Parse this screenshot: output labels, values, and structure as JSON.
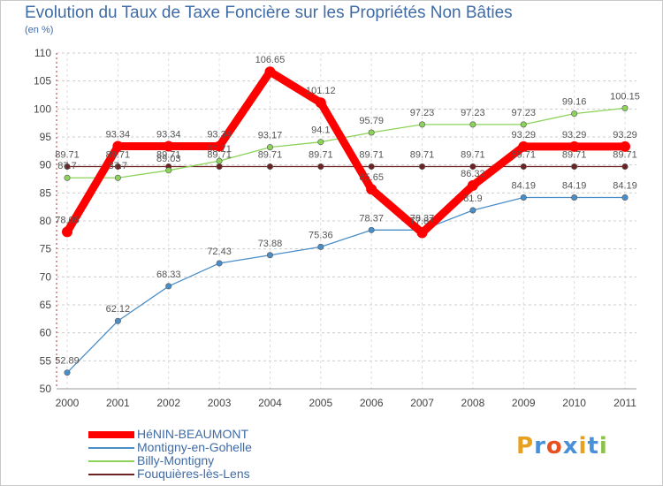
{
  "header": {
    "title": "Evolution du Taux de Taxe Foncière sur les Propriétés Non Bâties",
    "unit": "(en %)"
  },
  "brand": {
    "text": "Proxiti",
    "colors": [
      "#e8a020",
      "#4a90d9",
      "#e85020",
      "#4a90d9",
      "#e8a020",
      "#4a90d9",
      "#8bc34a"
    ]
  },
  "chart_data": {
    "type": "line",
    "title": "Evolution du Taux de Taxe Foncière sur les Propriétés Non Bâties",
    "ylabel": "(en %)",
    "xlabel": "",
    "ylim": [
      50,
      110
    ],
    "yticks": [
      50,
      55,
      60,
      65,
      70,
      75,
      80,
      85,
      90,
      95,
      100,
      105,
      110
    ],
    "categories": [
      "2000",
      "2001",
      "2002",
      "2003",
      "2004",
      "2005",
      "2006",
      "2007",
      "2008",
      "2009",
      "2010",
      "2011"
    ],
    "grid": "horizontal dashed",
    "legend": "bottom-left",
    "series": [
      {
        "name": "Fouquières-lès-Lens",
        "color": "#6b2323",
        "values": [
          89.71,
          89.71,
          89.71,
          89.71,
          89.71,
          89.71,
          89.71,
          89.71,
          89.71,
          89.71,
          89.71,
          89.71
        ],
        "labels": [
          "89.71",
          "89.71",
          "89.71",
          "89.71",
          "89.71",
          "89.71",
          "89.71",
          "89.71",
          "89.71",
          "89.71",
          "89.71",
          "89.71"
        ]
      },
      {
        "name": "Billy-Montigny",
        "color": "#8cd35a",
        "values": [
          87.7,
          87.7,
          89.03,
          90.71,
          93.17,
          94.1,
          95.79,
          97.23,
          97.23,
          97.23,
          99.16,
          100.15
        ],
        "labels": [
          "87.7",
          "87.7",
          "89.03",
          "90.71",
          "93.17",
          "94.1",
          "95.79",
          "97.23",
          "97.23",
          "97.23",
          "99.16",
          "100.15"
        ]
      },
      {
        "name": "Montigny-en-Gohelle",
        "color": "#4a8ec8",
        "values": [
          52.89,
          62.12,
          68.33,
          72.43,
          73.88,
          75.36,
          78.37,
          78.37,
          81.9,
          84.19,
          84.19,
          84.19
        ],
        "labels": [
          "52.89",
          "62.12",
          "68.33",
          "72.43",
          "73.88",
          "75.36",
          "78.37",
          "78.37",
          "81.9",
          "84.19",
          "84.19",
          "84.19"
        ]
      },
      {
        "name": "HéNIN-BEAUMONT",
        "color": "#ff0000",
        "values": [
          78.05,
          93.34,
          93.34,
          93.34,
          106.65,
          101.12,
          85.65,
          77.87,
          86.33,
          93.29,
          93.29,
          93.29
        ],
        "labels": [
          "78.05",
          "93.34",
          "93.34",
          "93.34",
          "106.65",
          "101.12",
          "85.65",
          "77.87",
          "86.33",
          "93.29",
          "93.29",
          "93.29"
        ]
      }
    ]
  },
  "legend_items": [
    {
      "label": "HéNIN-BEAUMONT",
      "color": "#ff0000"
    },
    {
      "label": "Montigny-en-Gohelle",
      "color": "#4a8ec8"
    },
    {
      "label": "Billy-Montigny",
      "color": "#8cd35a"
    },
    {
      "label": "Fouquières-lès-Lens",
      "color": "#6b2323"
    }
  ]
}
